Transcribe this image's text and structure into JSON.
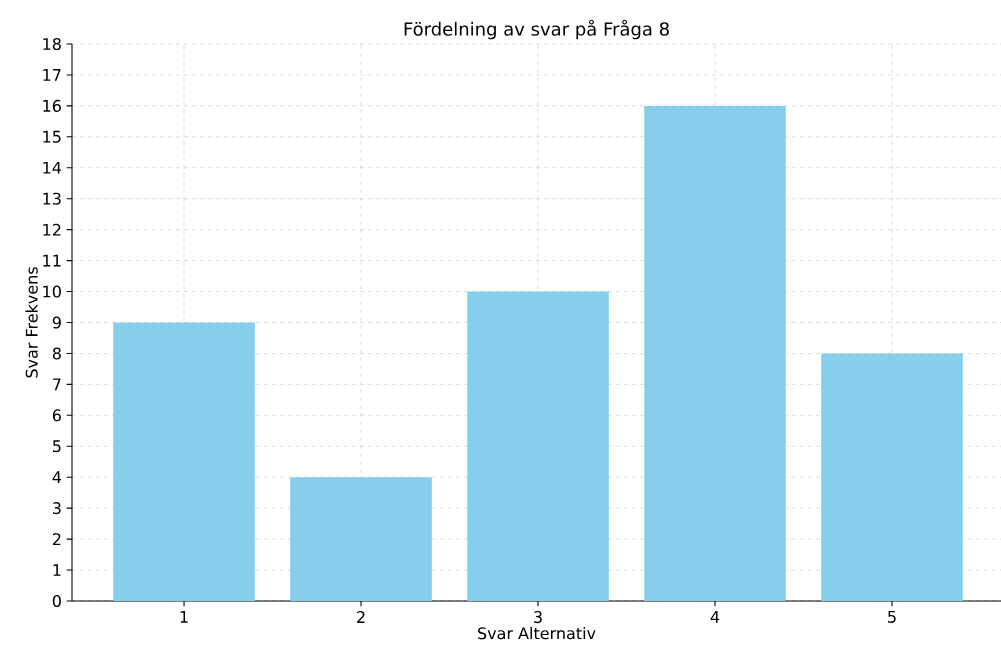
{
  "chart_data": {
    "type": "bar",
    "title": "Fördelning av svar på Fråga 8",
    "xlabel": "Svar Alternativ",
    "ylabel": "Svar Frekvens",
    "categories": [
      "1",
      "2",
      "3",
      "4",
      "5"
    ],
    "values": [
      9,
      4,
      10,
      16,
      8
    ],
    "color": "#87ceeb",
    "ylim": [
      0,
      18
    ],
    "yticks": [
      0,
      1,
      2,
      3,
      4,
      5,
      6,
      7,
      8,
      9,
      10,
      11,
      12,
      13,
      14,
      15,
      16,
      17,
      18
    ],
    "grid": true
  }
}
